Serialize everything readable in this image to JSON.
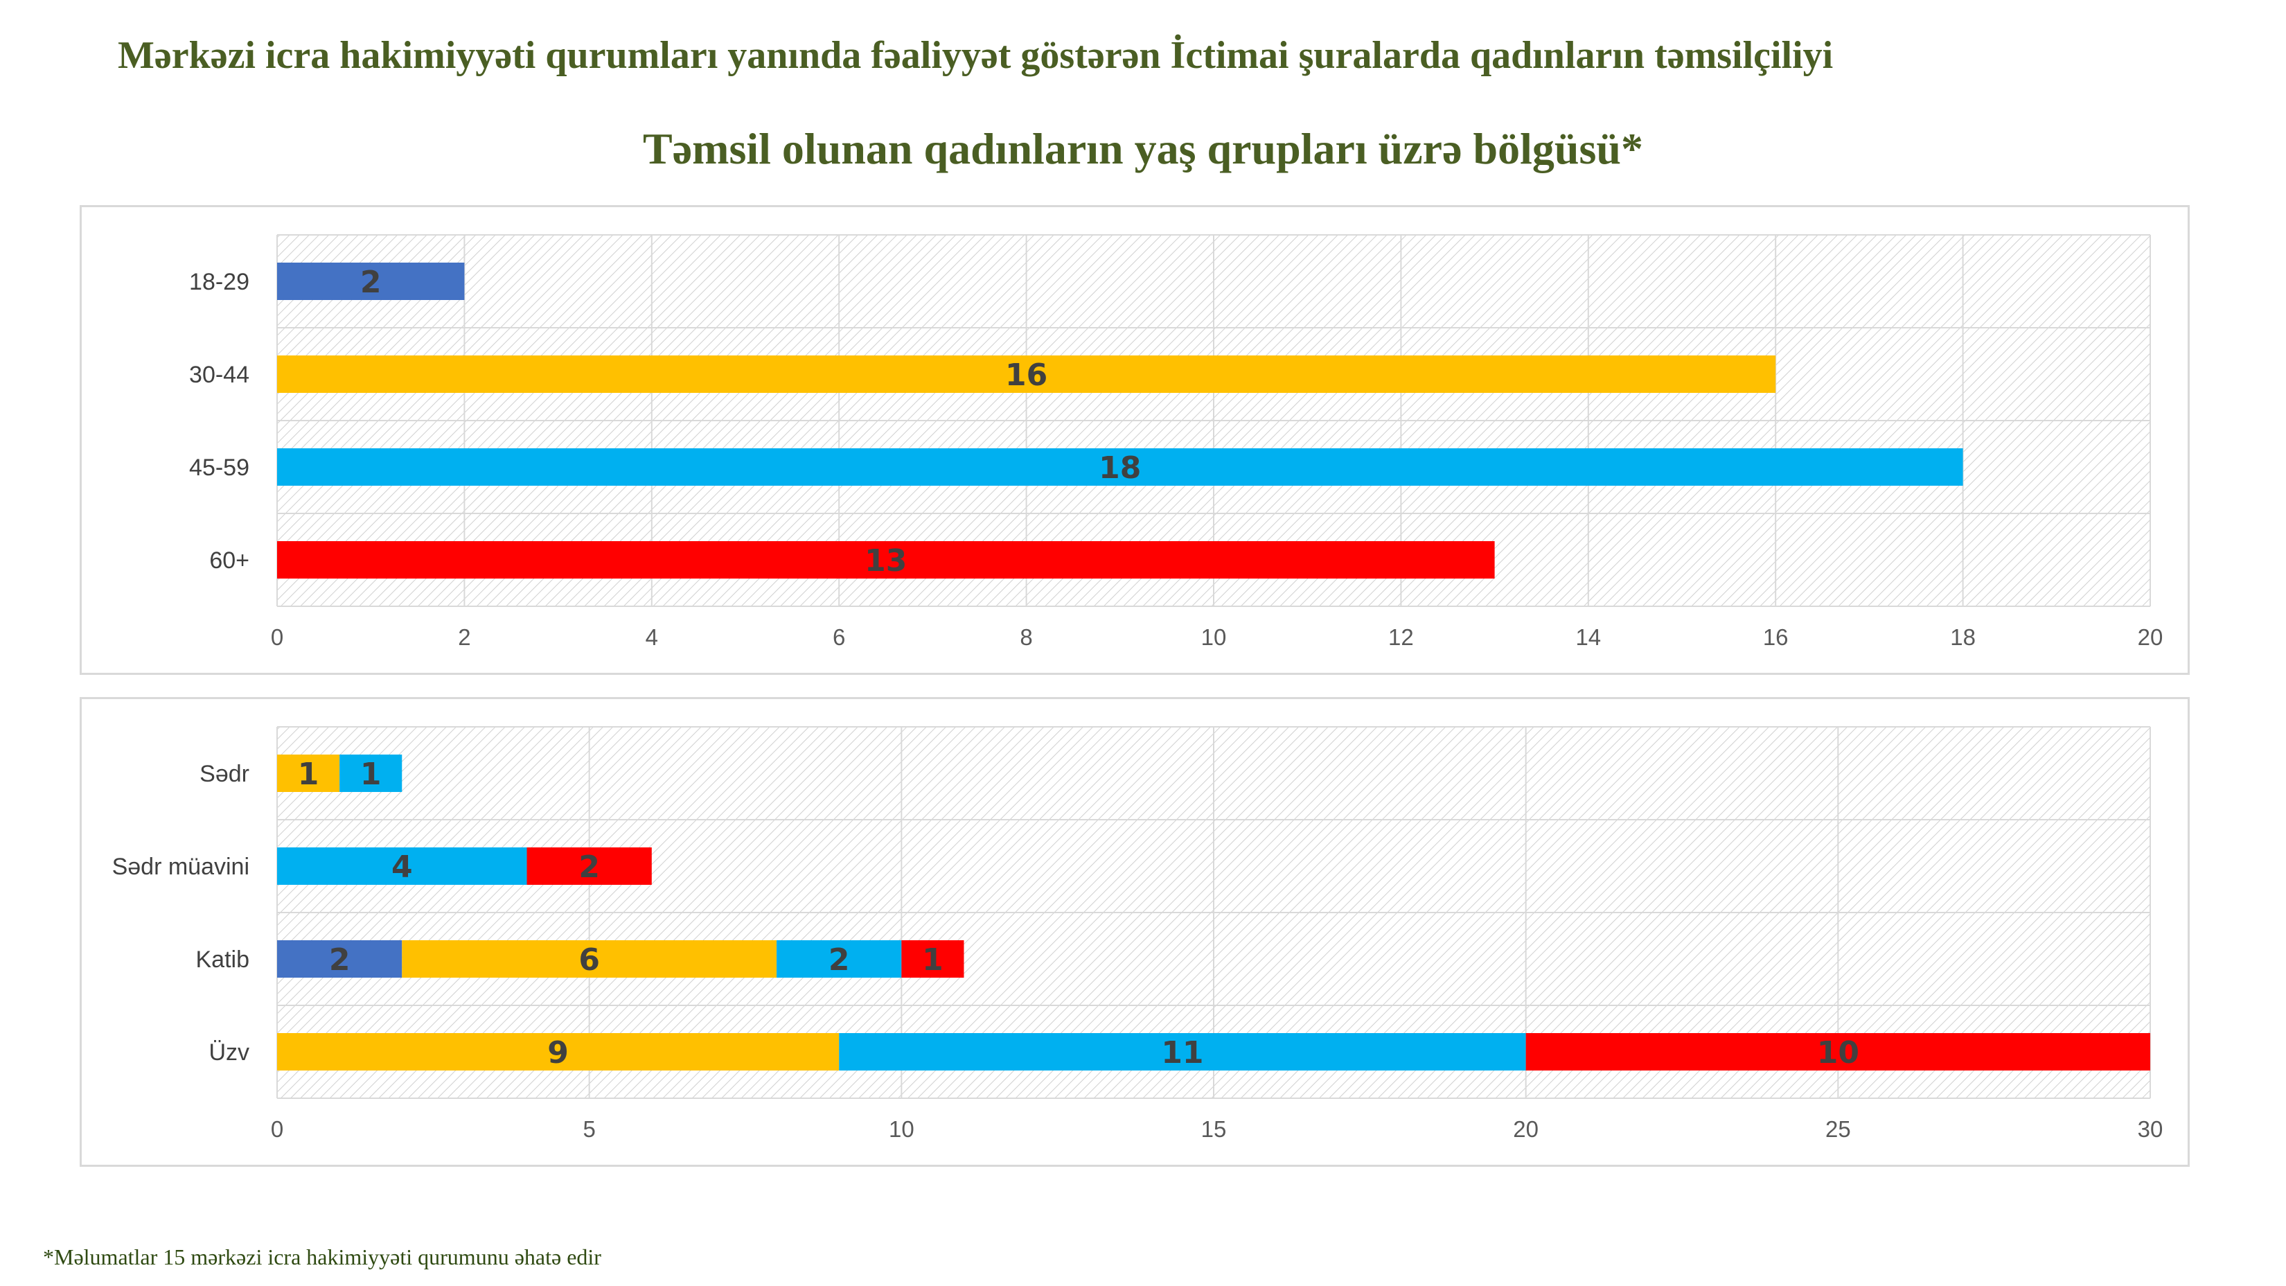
{
  "title": "Mərkəzi icra hakimiyyəti qurumları yanında fəaliyyət göstərən İctimai şuralarda qadınların təmsilçiliyi",
  "subtitle": "Təmsil olunan qadınların yaş qrupları üzrə bölgüsü*",
  "footnote": "*Məlumatlar 15 mərkəzi icra hakimiyyəti qurumunu əhatə edir",
  "colors": {
    "age_18_29": "#4472c4",
    "age_30_44": "#ffc000",
    "age_45_59": "#00b0f0",
    "age_60_plus": "#ff0000",
    "grid": "#d9d9d9",
    "hatch": "#d0d0d0"
  },
  "chart_data": [
    {
      "type": "bar",
      "orientation": "horizontal",
      "categories": [
        "18-29",
        "30-44",
        "45-59",
        "60+"
      ],
      "values": [
        2,
        16,
        18,
        13
      ],
      "bar_colors": [
        "#4472c4",
        "#ffc000",
        "#00b0f0",
        "#ff0000"
      ],
      "xlim": [
        0,
        20
      ],
      "xticks": [
        0,
        2,
        4,
        6,
        8,
        10,
        12,
        14,
        16,
        18,
        20
      ],
      "grid": true,
      "data_labels": true
    },
    {
      "type": "bar",
      "orientation": "horizontal",
      "stacked": true,
      "categories": [
        "Sədr",
        "Sədr müavini",
        "Katib",
        "Üzv"
      ],
      "series": [
        {
          "color": "#4472c4",
          "values": [
            0,
            0,
            2,
            0
          ]
        },
        {
          "color": "#ffc000",
          "values": [
            1,
            0,
            6,
            9
          ]
        },
        {
          "color": "#00b0f0",
          "values": [
            1,
            4,
            2,
            11
          ]
        },
        {
          "color": "#ff0000",
          "values": [
            0,
            2,
            1,
            10
          ]
        }
      ],
      "xlim": [
        0,
        30
      ],
      "xticks": [
        0,
        5,
        10,
        15,
        20,
        25,
        30
      ],
      "grid": true,
      "data_labels": true
    }
  ]
}
